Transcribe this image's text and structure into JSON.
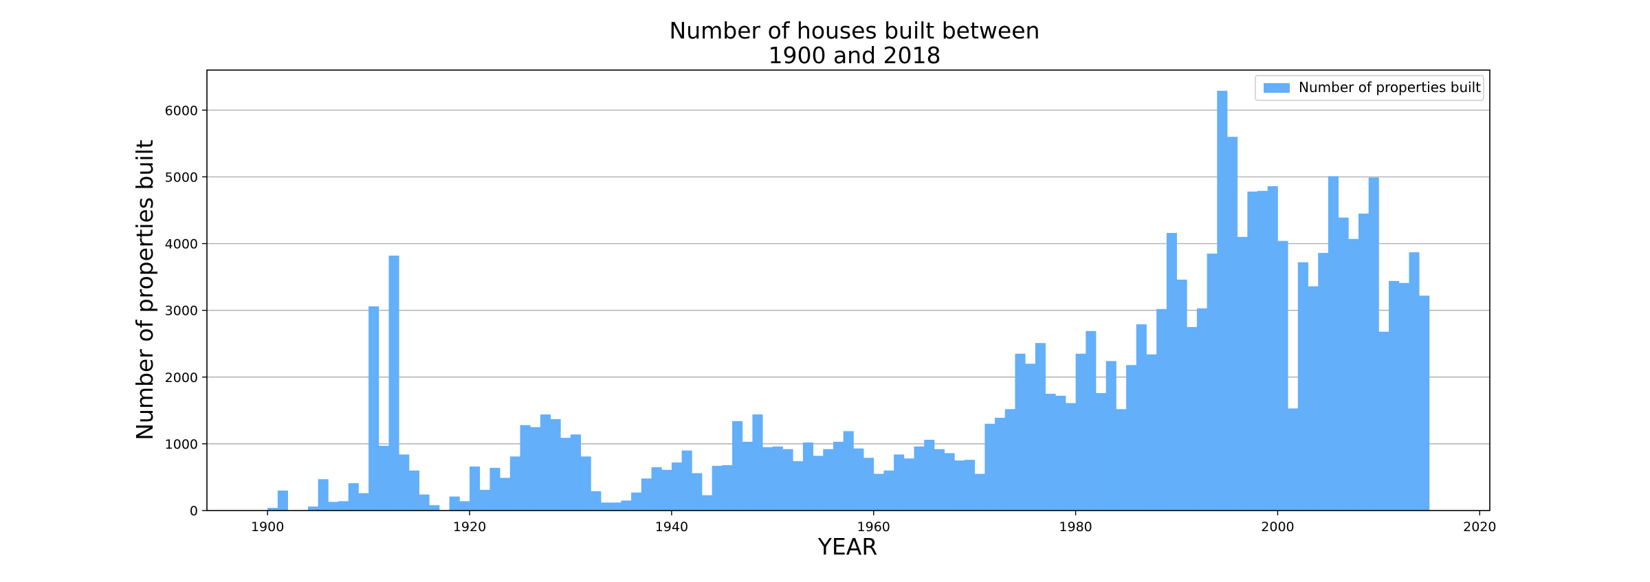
{
  "chart_data": {
    "type": "bar",
    "title_line1": "Number of houses built between",
    "title_line2": "1900 and 2018",
    "xlabel": "YEAR",
    "ylabel": "Number of properties built",
    "legend_label": "Number of properties built",
    "legend_position": "top-right",
    "bar_color": "#63aff9",
    "grid": "horizontal",
    "xlim": [
      1894,
      2021
    ],
    "ylim": [
      0,
      6600
    ],
    "x_ticks": [
      1900,
      1920,
      1940,
      1960,
      1980,
      2000,
      2020
    ],
    "y_ticks": [
      0,
      1000,
      2000,
      3000,
      4000,
      5000,
      6000
    ],
    "x": [
      1900,
      1901,
      1902,
      1903,
      1904,
      1905,
      1906,
      1907,
      1908,
      1909,
      1910,
      1911,
      1912,
      1913,
      1914,
      1915,
      1916,
      1917,
      1918,
      1919,
      1920,
      1921,
      1922,
      1923,
      1924,
      1925,
      1926,
      1927,
      1928,
      1929,
      1930,
      1931,
      1932,
      1933,
      1934,
      1935,
      1936,
      1937,
      1938,
      1939,
      1940,
      1941,
      1942,
      1943,
      1944,
      1945,
      1946,
      1947,
      1948,
      1949,
      1950,
      1951,
      1952,
      1953,
      1954,
      1955,
      1956,
      1957,
      1958,
      1959,
      1960,
      1961,
      1962,
      1963,
      1964,
      1965,
      1966,
      1967,
      1968,
      1969,
      1970,
      1971,
      1972,
      1973,
      1974,
      1975,
      1976,
      1977,
      1978,
      1979,
      1980,
      1981,
      1982,
      1983,
      1984,
      1985,
      1986,
      1987,
      1988,
      1989,
      1990,
      1991,
      1992,
      1993,
      1994,
      1995,
      1996,
      1997,
      1998,
      1999,
      2000,
      2001,
      2002,
      2003,
      2004,
      2005,
      2006,
      2007,
      2008,
      2009,
      2010,
      2011,
      2012,
      2013,
      2014
    ],
    "values": [
      40,
      300,
      0,
      0,
      60,
      470,
      130,
      140,
      410,
      260,
      3060,
      970,
      3820,
      840,
      600,
      240,
      80,
      0,
      210,
      140,
      660,
      310,
      640,
      490,
      810,
      1280,
      1250,
      1440,
      1370,
      1090,
      1140,
      810,
      290,
      120,
      120,
      150,
      270,
      480,
      650,
      610,
      720,
      900,
      560,
      230,
      670,
      680,
      1340,
      1030,
      1440,
      950,
      960,
      920,
      740,
      1020,
      820,
      920,
      1030,
      1190,
      930,
      790,
      550,
      600,
      840,
      780,
      960,
      1060,
      920,
      860,
      750,
      760,
      550,
      1300,
      1390,
      1520,
      2350,
      2200,
      2510,
      1750,
      1720,
      1610,
      2350,
      2690,
      1760,
      2240,
      1520,
      2180,
      2790,
      2340,
      3020,
      4160,
      3460,
      2750,
      3030,
      3850,
      6290,
      5600,
      4100,
      4780,
      4790,
      4860,
      4040,
      1530,
      3720,
      3360,
      3860,
      5010,
      4390,
      4070,
      4450,
      4990,
      2680,
      3440,
      3410,
      3870,
      3220
    ]
  }
}
